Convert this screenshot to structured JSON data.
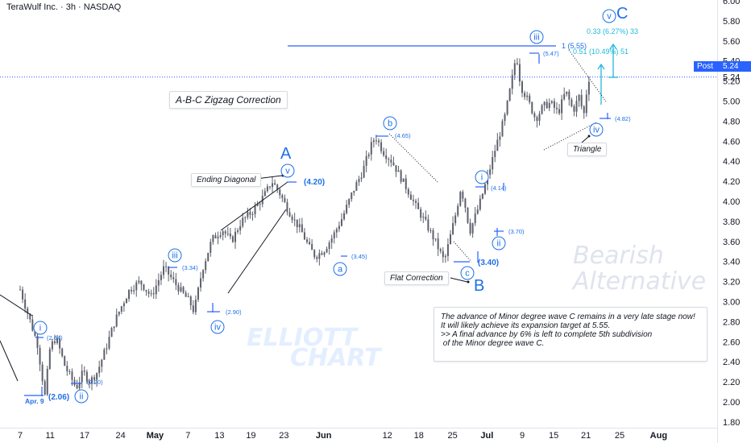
{
  "header": {
    "title": "TeraWulf Inc. · 3h · NASDAQ"
  },
  "chart_data": {
    "type": "candlestick",
    "symbol": "TeraWulf Inc.",
    "timeframe": "3h",
    "exchange": "NASDAQ",
    "ylim": [
      1.8,
      6.0
    ],
    "y_ticks": [
      "6.00",
      "5.80",
      "5.60",
      "5.40",
      "5.20",
      "5.00",
      "4.80",
      "4.60",
      "4.40",
      "4.20",
      "4.00",
      "3.80",
      "3.60",
      "3.40",
      "3.20",
      "3.00",
      "2.80",
      "2.60",
      "2.40",
      "2.20",
      "2.00",
      "1.80"
    ],
    "x_ticks": [
      {
        "label": "7",
        "pos": 0.0
      },
      {
        "label": "11",
        "pos": 4.0
      },
      {
        "label": "17",
        "pos": 8.6
      },
      {
        "label": "24",
        "pos": 13.4
      },
      {
        "label": "May",
        "pos": 18.0
      },
      {
        "label": "7",
        "pos": 22.4
      },
      {
        "label": "13",
        "pos": 26.6
      },
      {
        "label": "19",
        "pos": 30.8
      },
      {
        "label": "23",
        "pos": 35.2
      },
      {
        "label": "Jun",
        "pos": 40.5
      },
      {
        "label": "12",
        "pos": 49.0
      },
      {
        "label": "18",
        "pos": 53.2
      },
      {
        "label": "25",
        "pos": 57.7
      },
      {
        "label": "Jul",
        "pos": 62.3
      },
      {
        "label": "9",
        "pos": 67.0
      },
      {
        "label": "15",
        "pos": 71.2
      },
      {
        "label": "21",
        "pos": 75.5
      },
      {
        "label": "25",
        "pos": 80.0
      },
      {
        "label": "Aug",
        "pos": 85.2
      }
    ],
    "current_price": "5.24",
    "current_label": "Post",
    "path": [
      [
        0,
        3.12
      ],
      [
        2.3,
        2.58
      ],
      [
        3.3,
        2.06
      ],
      [
        4.0,
        2.55
      ],
      [
        4.8,
        2.64
      ],
      [
        6.0,
        2.35
      ],
      [
        7.5,
        2.14
      ],
      [
        8.4,
        2.3
      ],
      [
        9.3,
        2.2
      ],
      [
        10.3,
        2.3
      ],
      [
        11.5,
        2.55
      ],
      [
        12.6,
        2.8
      ],
      [
        13.5,
        2.95
      ],
      [
        14.6,
        3.12
      ],
      [
        16.0,
        3.2
      ],
      [
        17.5,
        3.05
      ],
      [
        19.2,
        3.34
      ],
      [
        20.3,
        3.22
      ],
      [
        21.3,
        3.12
      ],
      [
        22.6,
        3.0
      ],
      [
        23.2,
        2.9
      ],
      [
        24.3,
        3.32
      ],
      [
        25.6,
        3.62
      ],
      [
        27.0,
        3.72
      ],
      [
        28.2,
        3.6
      ],
      [
        29.5,
        3.8
      ],
      [
        31.0,
        3.9
      ],
      [
        32.5,
        4.05
      ],
      [
        33.6,
        4.2
      ],
      [
        34.5,
        4.1
      ],
      [
        35.5,
        3.95
      ],
      [
        36.5,
        3.82
      ],
      [
        37.4,
        3.72
      ],
      [
        38.5,
        3.55
      ],
      [
        39.4,
        3.45
      ],
      [
        40.6,
        3.52
      ],
      [
        41.8,
        3.66
      ],
      [
        43.0,
        3.84
      ],
      [
        44.4,
        4.1
      ],
      [
        45.7,
        4.3
      ],
      [
        46.8,
        4.55
      ],
      [
        47.4,
        4.65
      ],
      [
        48.4,
        4.5
      ],
      [
        49.6,
        4.4
      ],
      [
        50.7,
        4.25
      ],
      [
        51.8,
        4.1
      ],
      [
        52.8,
        3.95
      ],
      [
        54.0,
        3.8
      ],
      [
        55.4,
        3.6
      ],
      [
        56.6,
        3.4
      ],
      [
        57.4,
        3.65
      ],
      [
        58.2,
        3.9
      ],
      [
        58.8,
        4.14
      ],
      [
        59.4,
        3.95
      ],
      [
        60.0,
        3.7
      ],
      [
        61.2,
        3.95
      ],
      [
        62.4,
        4.25
      ],
      [
        63.5,
        4.55
      ],
      [
        64.7,
        4.85
      ],
      [
        65.6,
        5.2
      ],
      [
        66.2,
        5.47
      ],
      [
        66.8,
        5.15
      ],
      [
        67.8,
        5.0
      ],
      [
        68.8,
        4.82
      ],
      [
        69.8,
        4.95
      ],
      [
        70.8,
        4.98
      ],
      [
        71.8,
        4.88
      ],
      [
        72.8,
        5.1
      ],
      [
        73.8,
        4.9
      ],
      [
        74.6,
        5.05
      ],
      [
        75.2,
        4.85
      ],
      [
        75.6,
        5.1
      ],
      [
        76.2,
        5.35
      ]
    ],
    "annotations": {
      "waves": [
        "i",
        "ii",
        "iii",
        "iv",
        "v",
        "a",
        "b",
        "c",
        "i",
        "ii",
        "iii",
        "iv",
        "v"
      ],
      "major_labels": [
        "A",
        "B",
        "C"
      ],
      "price_labels": [
        "(2.64)",
        "(2.06)",
        "(2.20)",
        "(3.34)",
        "(2.90)",
        "(4.20)",
        "(3.45)",
        "(4.65)",
        "(3.40)",
        "(4.14)",
        "(3.70)",
        "(5.47)",
        "(4.82)"
      ],
      "date_label": "Apr. 9",
      "fib_target": "1 (5.55)",
      "measure_1": "0.33 (6.27%) 33",
      "measure_2": "0.51 (10.49%) 51",
      "ending_diagonal": "Ending Diagonal",
      "flat_correction": "Flat Correction",
      "triangle": "Triangle",
      "title_box": "A-B-C Zigzag Correction"
    }
  },
  "note": {
    "lines": [
      "The advance of Minor degree wave C remains in a very late stage now!",
      "It will likely achieve its expansion target at 5.55.",
      "",
      ">> A final advance by 6% is left to complete 5th subdivision",
      " of the Minor degree wave C."
    ]
  },
  "watermarks": {
    "bearish_1": "Bearish",
    "bearish_2": "Alternative",
    "logo_1": "ELLIOTT",
    "logo_2": "CHART"
  },
  "colors": {
    "accent": "#2962ff",
    "wave_blue": "#1e6fe8",
    "measure_cyan": "#22b8d8",
    "candle": "#5d606b"
  }
}
